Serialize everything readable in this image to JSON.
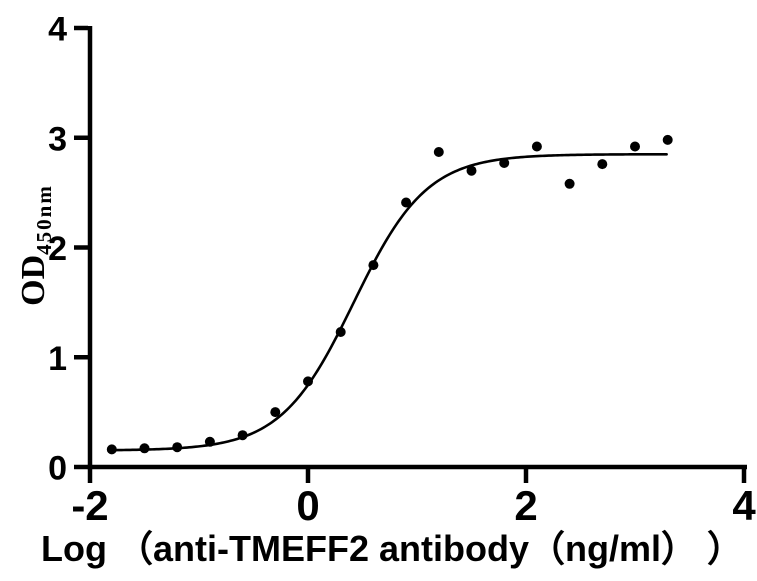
{
  "figure": {
    "background": "#ffffff",
    "foreground": "#000000"
  },
  "chart_data": {
    "type": "scatter",
    "title": "",
    "xlabel": "Log （anti-TMEFF2 antibody（ng/ml） ）",
    "ylabel": {
      "main": "OD",
      "subscript": "450nm"
    },
    "xlim": [
      -2,
      4
    ],
    "ylim": [
      0,
      4
    ],
    "grid": false,
    "legend": false,
    "x_ticks": {
      "values": [
        -2,
        0,
        2,
        4
      ],
      "labels": [
        "-2",
        "0",
        "2",
        "4"
      ]
    },
    "y_ticks": {
      "values": [
        0,
        1,
        2,
        3,
        4
      ],
      "labels": [
        "0",
        "1",
        "2",
        "3",
        "4"
      ]
    },
    "points": {
      "marker": "filled-circle",
      "color": "#000000",
      "x": [
        -1.8,
        -1.5,
        -1.2,
        -0.9,
        -0.6,
        -0.3,
        0.0,
        0.3,
        0.6,
        0.9,
        1.2,
        1.5,
        1.8,
        2.1,
        2.4,
        2.7,
        3.0,
        3.3
      ],
      "y": [
        0.16,
        0.17,
        0.18,
        0.23,
        0.29,
        0.5,
        0.78,
        1.23,
        1.84,
        2.41,
        2.87,
        2.7,
        2.77,
        2.92,
        2.58,
        2.76,
        2.92,
        2.98
      ]
    },
    "fit_curve": {
      "model": "4PL",
      "color": "#000000",
      "bottom": 0.15,
      "top": 2.85,
      "log_ec50": 0.42,
      "hill": 1.3,
      "x_start": -1.83,
      "x_end": 3.3
    }
  }
}
